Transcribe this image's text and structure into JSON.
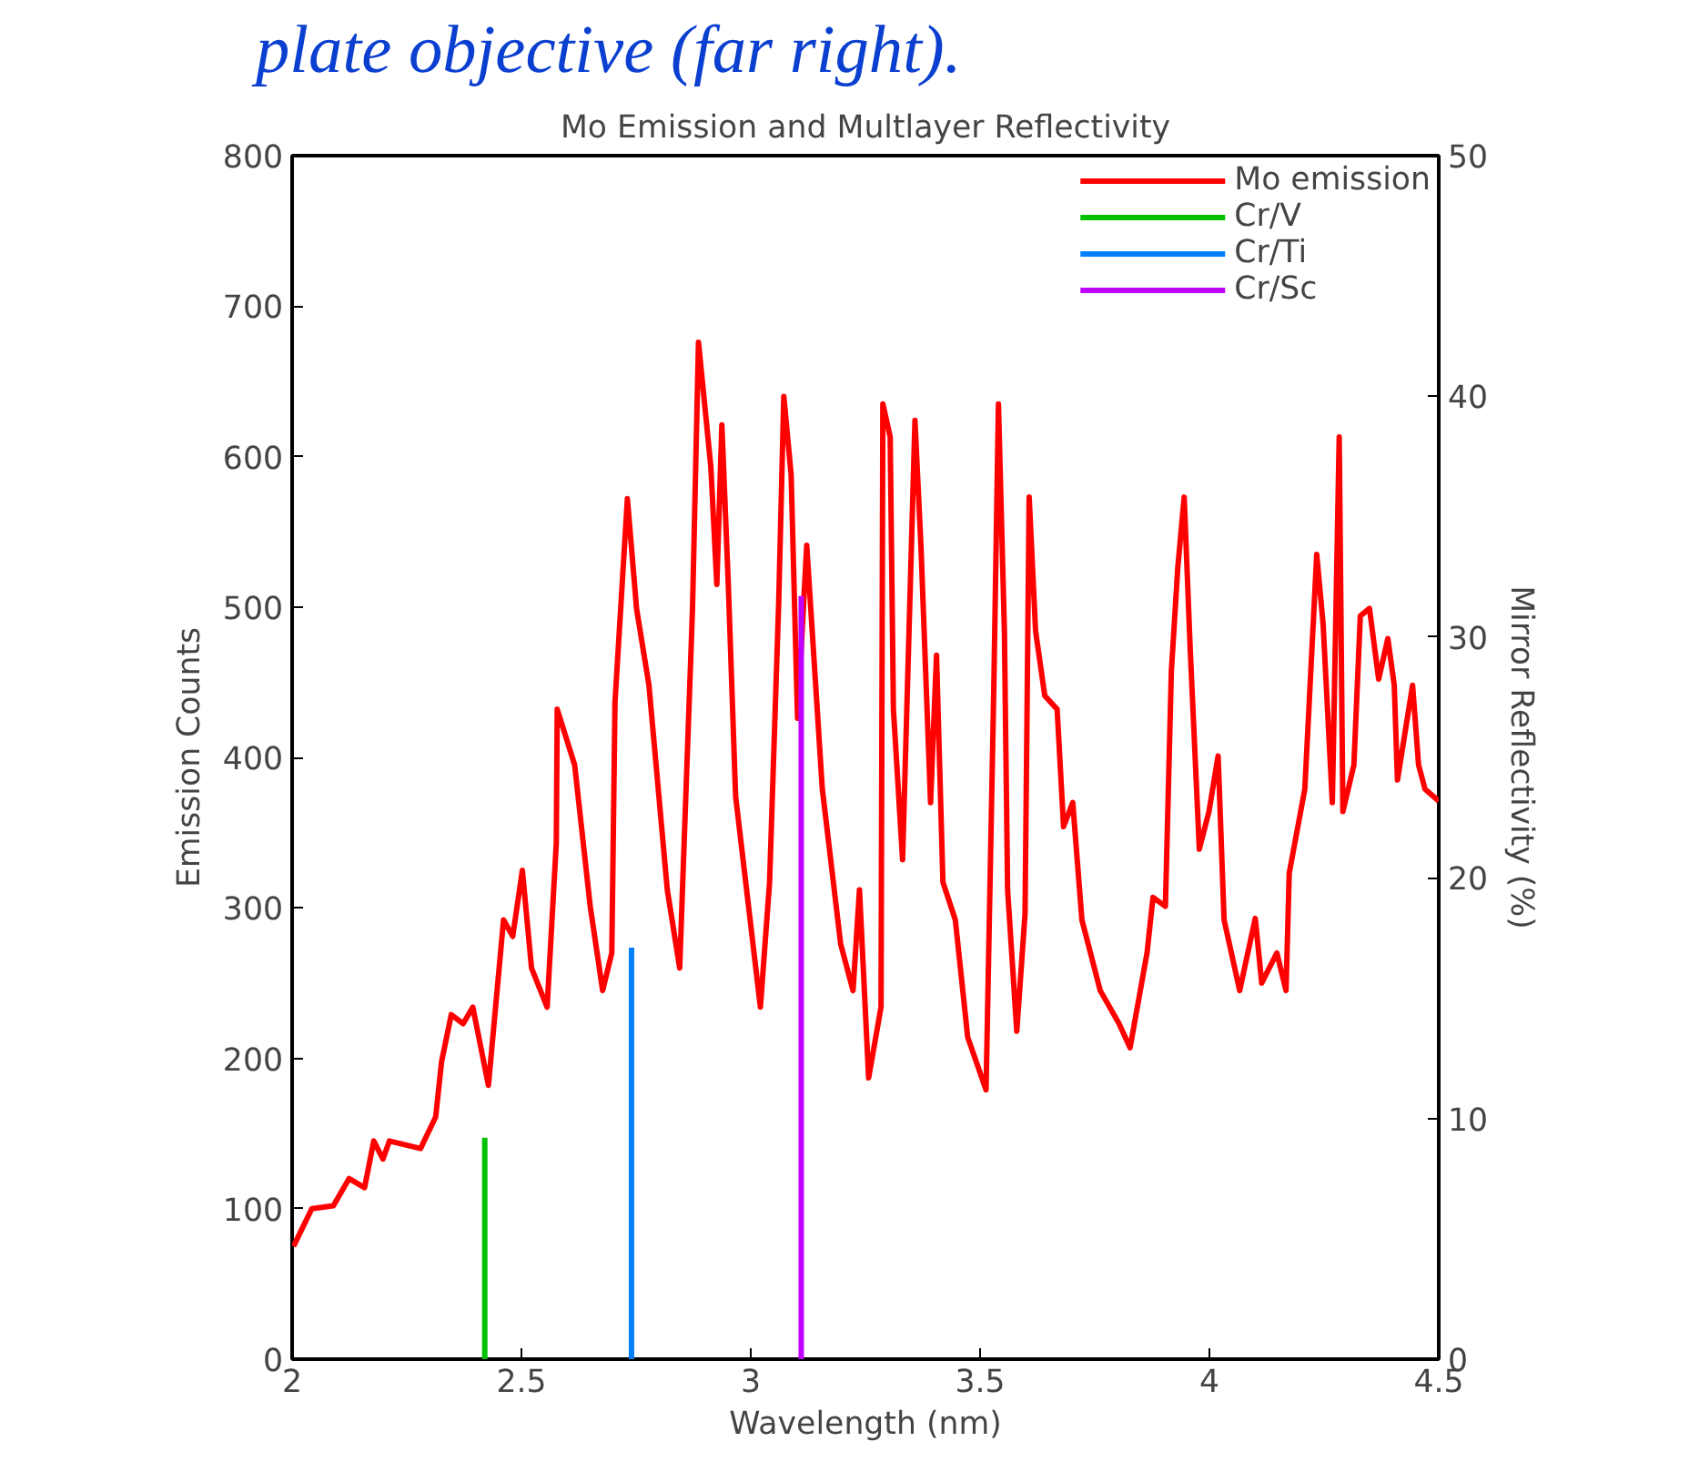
{
  "chart_data": {
    "type": "line",
    "title": "Mo Emission and Multlayer Reflectivity",
    "xlabel": "Wavelength (nm)",
    "ylabel": "Emission Counts",
    "y2label": "Mirror Reflectivity (%)",
    "annotations": [
      "plate objective (far right)."
    ],
    "xlim": [
      2,
      4.5
    ],
    "xticks": [
      2,
      2.5,
      3,
      3.5,
      4,
      4.5
    ],
    "ylim": [
      0,
      800
    ],
    "yticks": [
      0,
      100,
      200,
      300,
      400,
      500,
      600,
      700,
      800
    ],
    "y2lim": [
      0,
      50
    ],
    "y2ticks": [
      0,
      10,
      20,
      30,
      40,
      50
    ],
    "grid": false,
    "legend": "top right",
    "marker": "none",
    "line_style": "solid",
    "series": [
      {
        "name": "Mo emission",
        "color": "#ff0000",
        "x": [
          2.003,
          2.043,
          2.09,
          2.124,
          2.158,
          2.178,
          2.198,
          2.212,
          2.28,
          2.313,
          2.326,
          2.347,
          2.373,
          2.394,
          2.428,
          2.461,
          2.481,
          2.502,
          2.522,
          2.556,
          2.576,
          2.578,
          2.616,
          2.65,
          2.677,
          2.697,
          2.704,
          2.731,
          2.751,
          2.778,
          2.818,
          2.845,
          2.873,
          2.886,
          2.913,
          2.926,
          2.937,
          2.951,
          2.967,
          3.021,
          3.041,
          3.061,
          3.072,
          3.088,
          3.102,
          3.122,
          3.156,
          3.196,
          3.223,
          3.237,
          3.257,
          3.284,
          3.288,
          3.304,
          3.311,
          3.331,
          3.358,
          3.371,
          3.392,
          3.405,
          3.419,
          3.446,
          3.473,
          3.513,
          3.53,
          3.54,
          3.553,
          3.56,
          3.58,
          3.598,
          3.607,
          3.621,
          3.641,
          3.668,
          3.682,
          3.702,
          3.722,
          3.762,
          3.803,
          3.827,
          3.864,
          3.877,
          3.904,
          3.917,
          3.931,
          3.945,
          3.958,
          3.978,
          3.999,
          4.019,
          4.032,
          4.066,
          4.1,
          4.114,
          4.147,
          4.167,
          4.174,
          4.208,
          4.234,
          4.248,
          4.268,
          4.283,
          4.291,
          4.315,
          4.329,
          4.349,
          4.369,
          4.389,
          4.403,
          4.41,
          4.443,
          4.456,
          4.47,
          4.5
        ],
        "values": [
          75,
          100,
          102,
          120,
          114,
          145,
          133,
          145,
          140,
          161,
          198,
          229,
          223,
          234,
          182,
          292,
          281,
          325,
          260,
          234,
          343,
          432,
          395,
          301,
          245,
          270,
          437,
          572,
          499,
          448,
          312,
          260,
          499,
          676,
          593,
          515,
          621,
          515,
          374,
          234,
          317,
          504,
          640,
          588,
          426,
          541,
          379,
          276,
          245,
          312,
          187,
          234,
          635,
          613,
          432,
          332,
          624,
          541,
          370,
          468,
          317,
          292,
          214,
          179,
          448,
          635,
          484,
          312,
          218,
          296,
          573,
          484,
          441,
          432,
          354,
          370,
          292,
          245,
          223,
          207,
          270,
          307,
          301,
          457,
          526,
          573,
          473,
          339,
          364,
          401,
          292,
          245,
          293,
          250,
          270,
          245,
          323,
          379,
          535,
          488,
          370,
          613,
          364,
          395,
          494,
          499,
          452,
          479,
          448,
          385,
          448,
          395,
          379,
          371
        ]
      },
      {
        "name": "Cr/V",
        "color": "#00c000",
        "axis": "y2",
        "x": [
          2.42,
          2.42
        ],
        "values": [
          0,
          9.2
        ]
      },
      {
        "name": "Cr/Ti",
        "color": "#0080ff",
        "axis": "y2",
        "x": [
          2.74,
          2.74
        ],
        "values": [
          0,
          17.1
        ]
      },
      {
        "name": "Cr/Sc",
        "color": "#c000ff",
        "axis": "y2",
        "x": [
          3.11,
          3.11
        ],
        "values": [
          0,
          31.7
        ]
      }
    ]
  }
}
